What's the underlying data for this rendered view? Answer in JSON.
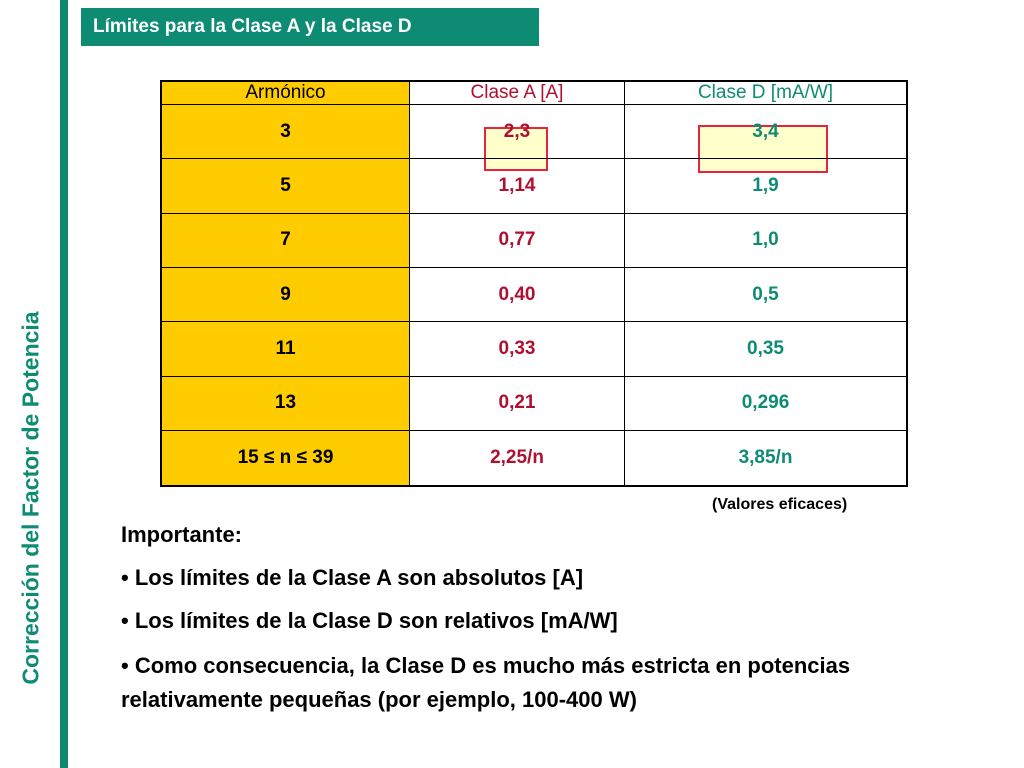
{
  "side_title": "Corrección del Factor de Potencia",
  "title": "Límites para la Clase A y la Clase D",
  "table": {
    "headers": [
      "Armónico",
      "Clase A  [A]",
      "Clase D  [mA/W]"
    ],
    "rows": [
      [
        "3",
        "2,3",
        "3,4"
      ],
      [
        "5",
        "1,14",
        "1,9"
      ],
      [
        "7",
        "0,77",
        "1,0"
      ],
      [
        "9",
        "0,40",
        "0,5"
      ],
      [
        "11",
        "0,33",
        "0,35"
      ],
      [
        "13",
        "0,21",
        "0,296"
      ],
      [
        "15 ≤ n ≤ 39",
        "2,25/n",
        "3,85/n"
      ]
    ]
  },
  "note": "(Valores eficaces)",
  "important_heading": "Importante:",
  "bullets": [
    "• Los límites de la Clase A son absolutos [A]",
    "• Los límites de la Clase D son relativos [mA/W]",
    "• Como consecuencia, la Clase D es mucho más estricta en potencias relativamente pequeñas (por ejemplo, 100-400 W)"
  ],
  "colors": {
    "accent_green": "#0e8c73",
    "harmonic_column": "#ffcc00",
    "class_a_text": "#b01030",
    "highlight_border": "#e8243c"
  }
}
